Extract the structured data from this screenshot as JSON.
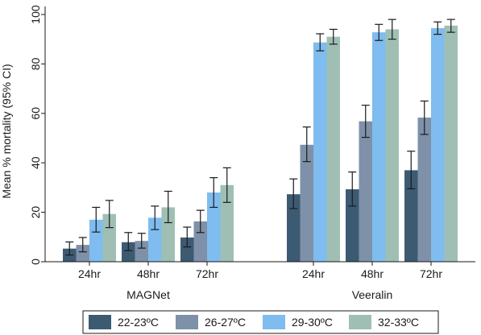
{
  "chart_data": {
    "type": "bar",
    "ylabel": "Mean % mortality (95% CI)",
    "ylim": [
      0,
      100
    ],
    "yticks": [
      "0",
      "20",
      "40",
      "60",
      "80",
      "100"
    ],
    "groups": [
      {
        "name": "MAGNet",
        "categories": [
          "24hr",
          "48hr",
          "72hr"
        ]
      },
      {
        "name": "Veeralin",
        "categories": [
          "24hr",
          "48hr",
          "72hr"
        ]
      }
    ],
    "series": [
      {
        "name": "22-23ºC",
        "color": "#3d5a73",
        "values": [
          5.3,
          7.9,
          9.8,
          27.3,
          29.3,
          37.0
        ],
        "ci_low": [
          2.7,
          4.5,
          6.0,
          21.5,
          22.5,
          29.5
        ],
        "ci_high": [
          8.0,
          11.8,
          14.0,
          33.5,
          36.3,
          44.7
        ]
      },
      {
        "name": "26-27ºC",
        "color": "#7f91a9",
        "values": [
          6.8,
          8.4,
          16.3,
          47.3,
          56.8,
          58.3
        ],
        "ci_low": [
          4.0,
          5.5,
          11.8,
          40.5,
          50.3,
          51.5
        ],
        "ci_high": [
          9.8,
          11.5,
          20.8,
          54.5,
          63.3,
          65.0
        ]
      },
      {
        "name": "29-30ºC",
        "color": "#7fbcef",
        "values": [
          17.0,
          17.8,
          28.0,
          88.7,
          92.8,
          94.5
        ],
        "ci_low": [
          12.0,
          13.0,
          22.0,
          85.3,
          89.5,
          92.0
        ],
        "ci_high": [
          22.0,
          22.5,
          34.0,
          92.2,
          96.0,
          97.0
        ]
      },
      {
        "name": "32-33ºC",
        "color": "#9fbfb5",
        "values": [
          19.3,
          22.0,
          31.0,
          91.0,
          94.0,
          95.5
        ],
        "ci_low": [
          13.8,
          15.8,
          24.0,
          88.0,
          90.0,
          92.8
        ],
        "ci_high": [
          24.8,
          28.5,
          38.0,
          94.0,
          98.0,
          98.0
        ]
      }
    ],
    "grid": false,
    "legend_position": "bottom"
  }
}
